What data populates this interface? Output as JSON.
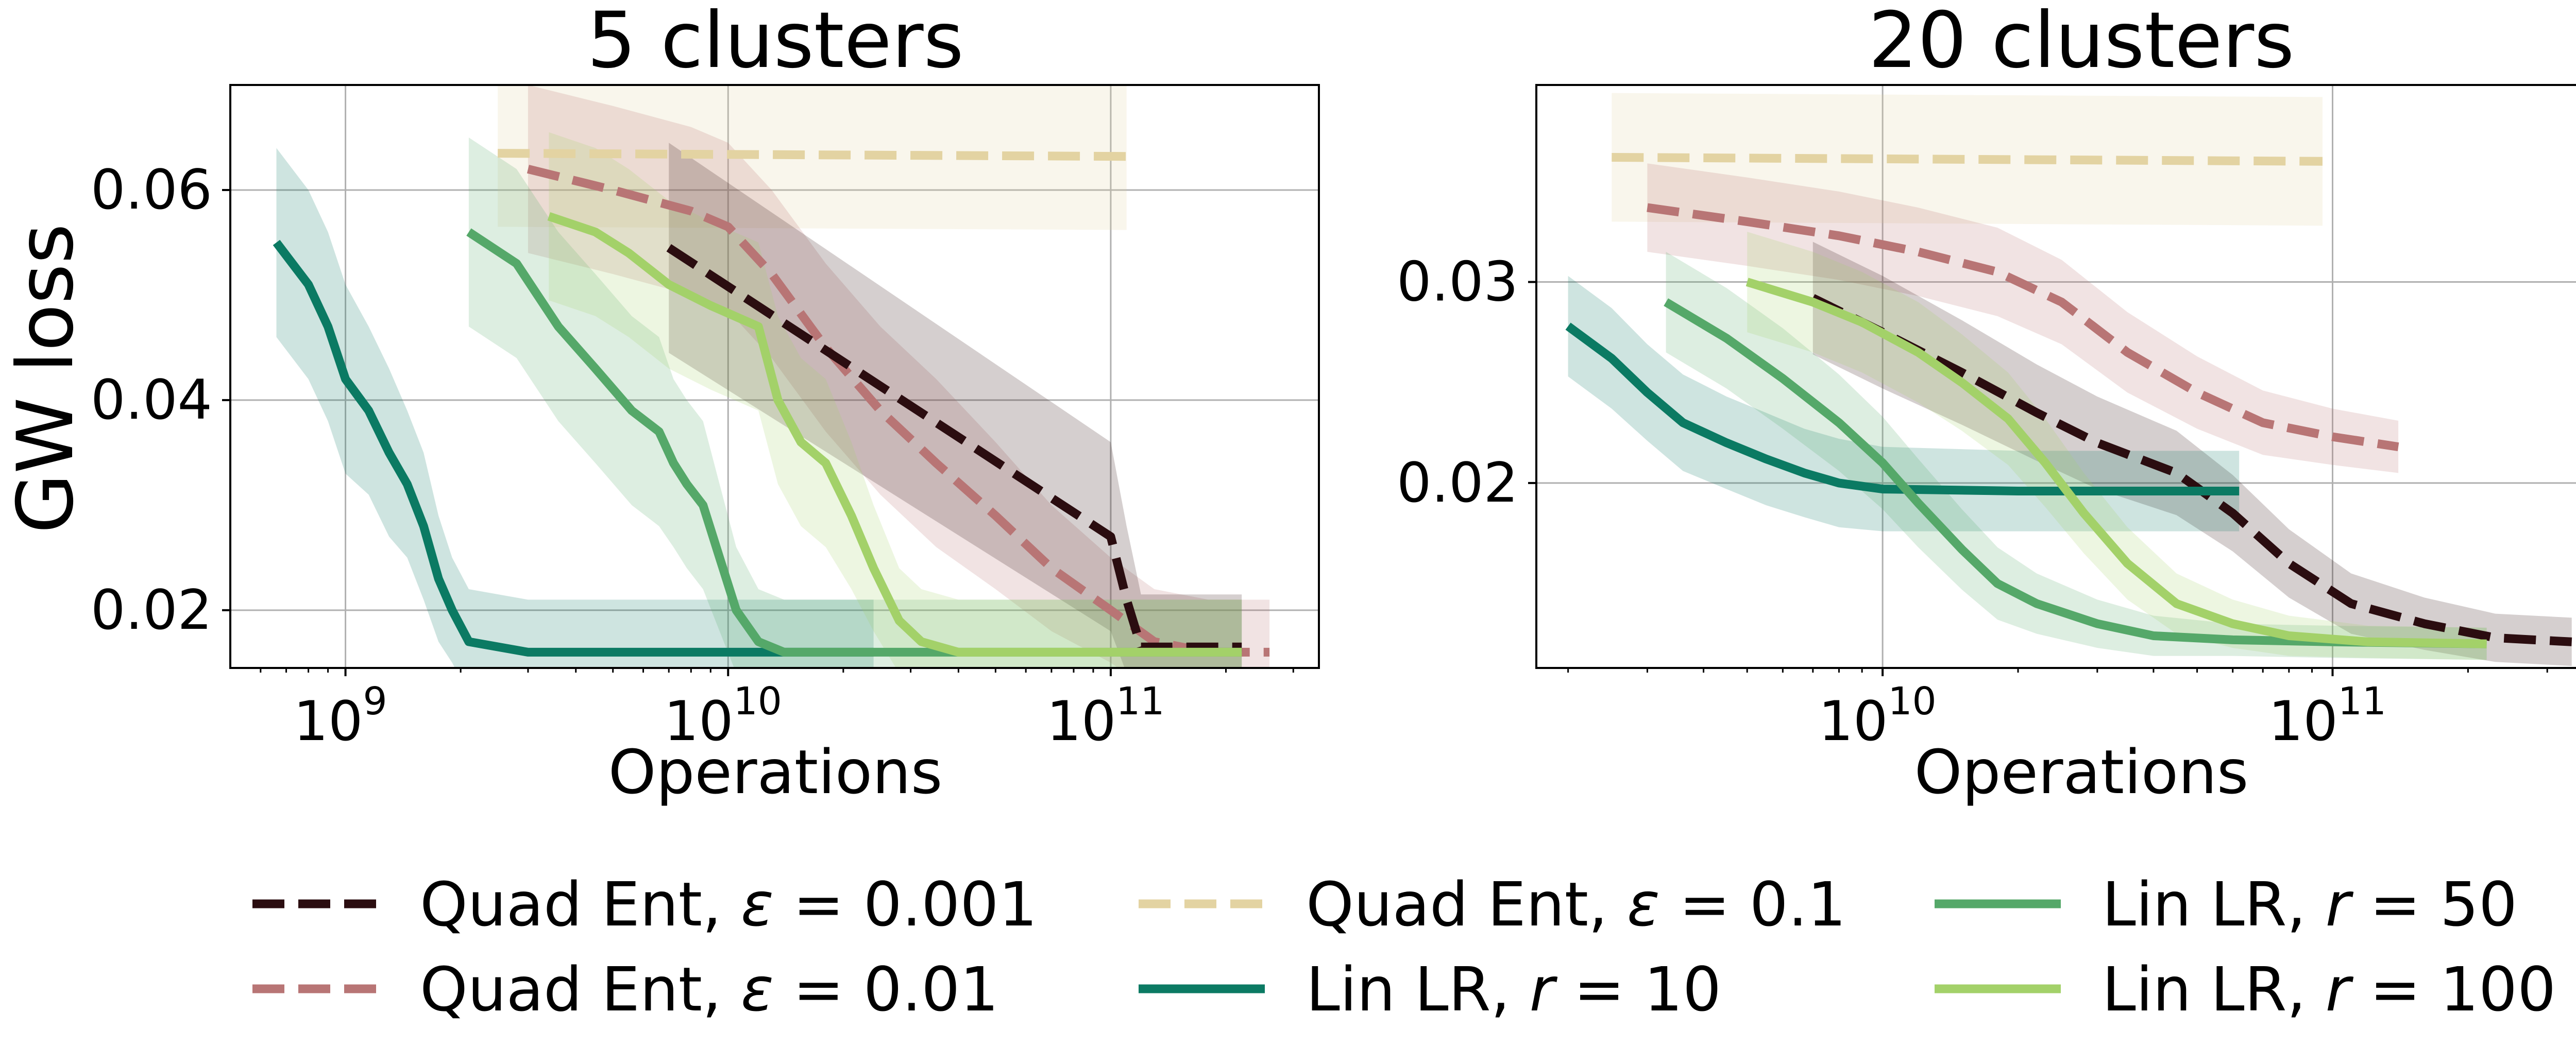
{
  "chart_data": [
    {
      "type": "line",
      "title": "5 clusters",
      "xlabel": "Operations",
      "ylabel": "GW loss",
      "xscale": "log",
      "xlim": [
        500000000,
        350000000000
      ],
      "ylim": [
        0.0145,
        0.07
      ],
      "xticks": [
        {
          "value": 1000000000,
          "base": "10",
          "exp": "9"
        },
        {
          "value": 10000000000,
          "base": "10",
          "exp": "10"
        },
        {
          "value": 100000000000,
          "base": "10",
          "exp": "11"
        }
      ],
      "yticks": [
        {
          "value": 0.02,
          "label": "0.02"
        },
        {
          "value": 0.04,
          "label": "0.04"
        },
        {
          "value": 0.06,
          "label": "0.06"
        }
      ],
      "grid": true,
      "series": [
        {
          "id": "lin10",
          "x": [
            660000000.0,
            800000000.0,
            900000000.0,
            1000000000.0,
            1150000000.0,
            1300000000.0,
            1450000000.0,
            1600000000.0,
            1750000000.0,
            1900000000.0,
            2100000000.0,
            3000000000.0,
            5000000000.0,
            10000000000.0,
            15000000000.0,
            24000000000.0
          ],
          "y": [
            0.055,
            0.051,
            0.047,
            0.042,
            0.039,
            0.035,
            0.032,
            0.028,
            0.023,
            0.02,
            0.017,
            0.016,
            0.016,
            0.016,
            0.016,
            0.016
          ],
          "band": [
            0.009,
            0.009,
            0.009,
            0.009,
            0.008,
            0.008,
            0.007,
            0.007,
            0.006,
            0.005,
            0.005,
            0.005,
            0.005,
            0.005,
            0.005,
            0.005
          ]
        },
        {
          "id": "lin50",
          "x": [
            2100000000.0,
            2800000000.0,
            3600000000.0,
            4500000000.0,
            5600000000.0,
            6600000000.0,
            7200000000.0,
            7800000000.0,
            8600000000.0,
            9500000000.0,
            10500000000.0,
            12000000000.0,
            14000000000.0,
            17000000000.0,
            220000000000.0
          ],
          "y": [
            0.056,
            0.053,
            0.047,
            0.043,
            0.039,
            0.037,
            0.034,
            0.032,
            0.03,
            0.025,
            0.02,
            0.017,
            0.016,
            0.016,
            0.016
          ],
          "band": [
            0.009,
            0.009,
            0.009,
            0.009,
            0.009,
            0.009,
            0.008,
            0.008,
            0.008,
            0.007,
            0.006,
            0.005,
            0.005,
            0.005,
            0.005
          ]
        },
        {
          "id": "lin100",
          "x": [
            3400000000.0,
            4500000000.0,
            5500000000.0,
            7000000000.0,
            9000000000.0,
            12000000000.0,
            13500000000.0,
            15500000000.0,
            18000000000.0,
            21000000000.0,
            24000000000.0,
            28000000000.0,
            32000000000.0,
            40000000000.0,
            50000000000.0,
            220000000000.0
          ],
          "y": [
            0.0575,
            0.056,
            0.054,
            0.051,
            0.049,
            0.047,
            0.04,
            0.036,
            0.034,
            0.029,
            0.024,
            0.019,
            0.017,
            0.016,
            0.016,
            0.016
          ],
          "band": [
            0.008,
            0.008,
            0.008,
            0.008,
            0.008,
            0.008,
            0.008,
            0.008,
            0.008,
            0.007,
            0.006,
            0.005,
            0.005,
            0.005,
            0.005,
            0.005
          ]
        },
        {
          "id": "ent01",
          "x": [
            2500000000.0,
            110000000000.0
          ],
          "y": [
            0.0635,
            0.0632
          ],
          "band": [
            0.007,
            0.007
          ]
        },
        {
          "id": "ent001",
          "x": [
            3000000000.0,
            5000000000.0,
            8000000000.0,
            10000000000.0,
            13000000000.0,
            18000000000.0,
            25000000000.0,
            35000000000.0,
            50000000000.0,
            70000000000.0,
            100000000000.0,
            130000000000.0,
            180000000000.0,
            260000000000.0
          ],
          "y": [
            0.062,
            0.06,
            0.058,
            0.0565,
            0.052,
            0.045,
            0.039,
            0.034,
            0.029,
            0.024,
            0.02,
            0.017,
            0.016,
            0.016
          ],
          "band": [
            0.008,
            0.008,
            0.008,
            0.008,
            0.008,
            0.008,
            0.008,
            0.008,
            0.007,
            0.006,
            0.005,
            0.005,
            0.005,
            0.005
          ]
        },
        {
          "id": "ent0001",
          "x": [
            7000000000.0,
            100000000000.0,
            110000000000.0,
            120000000000.0,
            220000000000.0
          ],
          "y": [
            0.0545,
            0.027,
            0.021,
            0.0165,
            0.0165
          ],
          "band": [
            0.01,
            0.009,
            0.007,
            0.005,
            0.005
          ]
        }
      ]
    },
    {
      "type": "line",
      "title": "20 clusters",
      "xlabel": "Operations",
      "ylabel": "",
      "xscale": "log",
      "xlim": [
        1700000000,
        450000000000
      ],
      "ylim": [
        0.0108,
        0.0398
      ],
      "xticks": [
        {
          "value": 10000000000,
          "base": "10",
          "exp": "10"
        },
        {
          "value": 100000000000,
          "base": "10",
          "exp": "11"
        }
      ],
      "yticks": [
        {
          "value": 0.02,
          "label": "0.02"
        },
        {
          "value": 0.03,
          "label": "0.03"
        }
      ],
      "grid": true,
      "series": [
        {
          "id": "lin10",
          "x": [
            2000000000.0,
            2500000000.0,
            3000000000.0,
            3600000000.0,
            4500000000.0,
            5500000000.0,
            6700000000.0,
            8000000000.0,
            10000000000.0,
            20000000000.0,
            40000000000.0,
            62000000000.0
          ],
          "y": [
            0.0278,
            0.0262,
            0.0245,
            0.023,
            0.022,
            0.0212,
            0.0205,
            0.02,
            0.0197,
            0.0196,
            0.0196,
            0.0196
          ],
          "band": [
            0.0025,
            0.0025,
            0.0024,
            0.0024,
            0.0023,
            0.0023,
            0.0022,
            0.0022,
            0.0021,
            0.002,
            0.002,
            0.002
          ]
        },
        {
          "id": "lin50",
          "x": [
            3300000000.0,
            4500000000.0,
            6000000000.0,
            8000000000.0,
            10000000000.0,
            12000000000.0,
            15000000000.0,
            18000000000.0,
            22000000000.0,
            30000000000.0,
            40000000000.0,
            60000000000.0,
            100000000000.0,
            220000000000.0
          ],
          "y": [
            0.029,
            0.0272,
            0.0252,
            0.023,
            0.021,
            0.019,
            0.0167,
            0.015,
            0.014,
            0.013,
            0.0124,
            0.0122,
            0.0121,
            0.012
          ],
          "band": [
            0.0025,
            0.0025,
            0.0025,
            0.0024,
            0.0023,
            0.0022,
            0.002,
            0.0018,
            0.0015,
            0.0012,
            0.001,
            0.0008,
            0.0008,
            0.0008
          ]
        },
        {
          "id": "lin100",
          "x": [
            5000000000.0,
            7000000000.0,
            9000000000.0,
            12000000000.0,
            15000000000.0,
            19000000000.0,
            23000000000.0,
            28000000000.0,
            35000000000.0,
            45000000000.0,
            60000000000.0,
            80000000000.0,
            120000000000.0,
            220000000000.0
          ],
          "y": [
            0.03,
            0.029,
            0.028,
            0.0265,
            0.025,
            0.0232,
            0.021,
            0.0185,
            0.016,
            0.014,
            0.013,
            0.0124,
            0.0121,
            0.012
          ],
          "band": [
            0.0025,
            0.0025,
            0.0025,
            0.0025,
            0.0024,
            0.0023,
            0.0022,
            0.002,
            0.0018,
            0.0015,
            0.0012,
            0.001,
            0.0008,
            0.0008
          ]
        },
        {
          "id": "ent01",
          "x": [
            2500000000.0,
            95000000000.0
          ],
          "y": [
            0.0362,
            0.036
          ],
          "band": [
            0.0032,
            0.0032
          ]
        },
        {
          "id": "ent001",
          "x": [
            3000000000.0,
            5000000000.0,
            8000000000.0,
            12000000000.0,
            18000000000.0,
            25000000000.0,
            35000000000.0,
            50000000000.0,
            70000000000.0,
            100000000000.0,
            140000000000.0
          ],
          "y": [
            0.0337,
            0.033,
            0.0323,
            0.0315,
            0.0305,
            0.029,
            0.0265,
            0.0245,
            0.023,
            0.0223,
            0.0218
          ],
          "band": [
            0.0022,
            0.0022,
            0.0022,
            0.0022,
            0.0022,
            0.0021,
            0.002,
            0.0018,
            0.0016,
            0.0014,
            0.0013
          ]
        },
        {
          "id": "ent0001",
          "x": [
            7000000000.0,
            10000000000.0,
            15000000000.0,
            22000000000.0,
            30000000000.0,
            45000000000.0,
            60000000000.0,
            80000000000.0,
            110000000000.0,
            160000000000.0,
            230000000000.0,
            340000000000.0
          ],
          "y": [
            0.0292,
            0.0275,
            0.0255,
            0.0235,
            0.022,
            0.0205,
            0.0185,
            0.016,
            0.014,
            0.013,
            0.0123,
            0.0121
          ],
          "band": [
            0.0028,
            0.0028,
            0.0026,
            0.0024,
            0.0023,
            0.0021,
            0.0019,
            0.0017,
            0.0015,
            0.0013,
            0.0012,
            0.0012
          ]
        }
      ]
    }
  ],
  "legend": {
    "placement": "bottom",
    "items": [
      {
        "id": "ent0001",
        "label": "Quad Ent, ",
        "math_var": "ε",
        "math_rest": " = 0.001",
        "color": "#2b0d10",
        "dash": true
      },
      {
        "id": "ent001",
        "label": "Quad Ent, ",
        "math_var": "ε",
        "math_rest": " = 0.01",
        "color": "#b87575",
        "dash": true
      },
      {
        "id": "ent01",
        "label": "Quad Ent, ",
        "math_var": "ε",
        "math_rest": " = 0.1",
        "color": "#e3d3a2",
        "dash": true
      },
      {
        "id": "lin10",
        "label": "Lin LR, ",
        "math_var": "r",
        "math_rest": " = 10",
        "color": "#0b7a63",
        "dash": false
      },
      {
        "id": "lin50",
        "label": "Lin LR, ",
        "math_var": "r",
        "math_rest": " = 50",
        "color": "#55a869",
        "dash": false
      },
      {
        "id": "lin100",
        "label": "Lin LR, ",
        "math_var": "r",
        "math_rest": " = 100",
        "color": "#a3d169",
        "dash": false
      }
    ]
  }
}
